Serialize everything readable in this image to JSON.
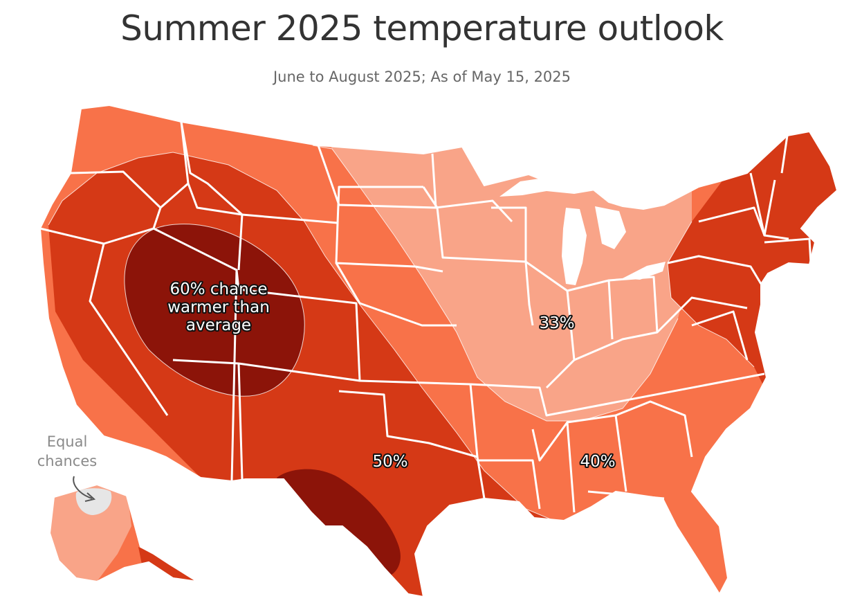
{
  "header": {
    "title": "Summer 2025 temperature outlook",
    "subtitle": "June to August 2025; As of May 15, 2025"
  },
  "map": {
    "region": "Contiguous United States and Alaska",
    "colors": {
      "equal_chances": "#e6e6e6",
      "prob_33": "#f9a488",
      "prob_40": "#f87249",
      "prob_50": "#d53916",
      "prob_60": "#8c1409",
      "state_border": "#ffffff"
    },
    "labels": {
      "p60": "60% chance warmer than average",
      "p60_line1": "60% chance",
      "p60_line2": "warmer than",
      "p60_line3": "average",
      "p50": "50%",
      "p40": "40%",
      "p33": "33%"
    },
    "annotation": {
      "line1": "Equal",
      "line2": "chances"
    }
  }
}
